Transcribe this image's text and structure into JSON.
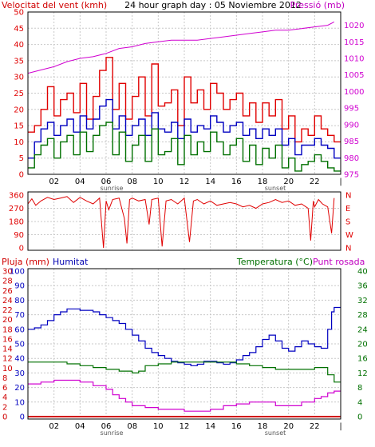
{
  "colors": {
    "frame": "#000000",
    "grid": "#c8c8c8",
    "wind_gust": "#e00000",
    "wind_avg": "#0000c0",
    "wind_low": "#007000",
    "pressure": "#d000d0",
    "rain": "#d00000",
    "humidity": "#0000c0",
    "temperature": "#007000",
    "dewpoint": "#d000d0",
    "sun_label": "#555555"
  },
  "chart_data": [
    {
      "type": "line",
      "title": "24 hour graph day : 05 Noviembre 2012",
      "ylabel_left": "Velocitat del vent (kmh)",
      "ylabel_right": "Pressió (mb)",
      "x_ticks": [
        "02",
        "04",
        "06",
        "08",
        "10",
        "12",
        "14",
        "16",
        "18",
        "20",
        "22",
        "|"
      ],
      "x_annotations": [
        "sunrise",
        "sunset"
      ],
      "xlim": [
        0,
        24
      ],
      "ylim_left": [
        0,
        50
      ],
      "y_ticks_left": [
        "0",
        "5",
        "10",
        "15",
        "20",
        "25",
        "30",
        "35",
        "40",
        "45",
        "50"
      ],
      "ylim_right": [
        975,
        1024
      ],
      "y_ticks_right": [
        "975",
        "980",
        "985",
        "990",
        "995",
        "1000",
        "1005",
        "1010",
        "1015",
        "1020"
      ],
      "grid": true,
      "series": [
        {
          "role": "gust",
          "axis": "left",
          "x": [
            0,
            0.5,
            1,
            1.5,
            2,
            2.5,
            3,
            3.5,
            4,
            4.5,
            5,
            5.5,
            6,
            6.5,
            7,
            7.5,
            8,
            8.5,
            9,
            9.5,
            10,
            10.5,
            11,
            11.5,
            12,
            12.5,
            13,
            13.5,
            14,
            14.5,
            15,
            15.5,
            16,
            16.5,
            17,
            17.5,
            18,
            18.5,
            19,
            19.5,
            20,
            20.5,
            21,
            21.5,
            22,
            22.5,
            23,
            23.5
          ],
          "values": [
            13,
            15,
            20,
            27,
            18,
            23,
            25,
            19,
            28,
            17,
            24,
            32,
            36,
            20,
            28,
            17,
            24,
            30,
            18,
            34,
            21,
            22,
            26,
            15,
            30,
            22,
            26,
            20,
            28,
            25,
            20,
            23,
            25,
            18,
            22,
            16,
            22,
            18,
            23,
            14,
            18,
            10,
            14,
            12,
            18,
            14,
            12,
            10
          ]
        },
        {
          "role": "average",
          "axis": "left",
          "x": [
            0,
            0.5,
            1,
            1.5,
            2,
            2.5,
            3,
            3.5,
            4,
            4.5,
            5,
            5.5,
            6,
            6.5,
            7,
            7.5,
            8,
            8.5,
            9,
            9.5,
            10,
            10.5,
            11,
            11.5,
            12,
            12.5,
            13,
            13.5,
            14,
            14.5,
            15,
            15.5,
            16,
            16.5,
            17,
            17.5,
            18,
            18.5,
            19,
            19.5,
            20,
            20.5,
            21,
            21.5,
            22,
            22.5,
            23,
            23.5
          ],
          "values": [
            5,
            10,
            14,
            16,
            12,
            15,
            17,
            13,
            18,
            14,
            17,
            21,
            23,
            14,
            18,
            12,
            15,
            17,
            12,
            19,
            14,
            13,
            16,
            11,
            17,
            13,
            15,
            14,
            18,
            16,
            13,
            15,
            16,
            12,
            14,
            11,
            14,
            12,
            14,
            9,
            11,
            6,
            9,
            9,
            11,
            9,
            8,
            5
          ]
        },
        {
          "role": "low",
          "axis": "left",
          "x": [
            0,
            0.5,
            1,
            1.5,
            2,
            2.5,
            3,
            3.5,
            4,
            4.5,
            5,
            5.5,
            6,
            6.5,
            7,
            7.5,
            8,
            8.5,
            9,
            9.5,
            10,
            10.5,
            11,
            11.5,
            12,
            12.5,
            13,
            13.5,
            14,
            14.5,
            15,
            15.5,
            16,
            16.5,
            17,
            17.5,
            18,
            18.5,
            19,
            19.5,
            20,
            20.5,
            21,
            21.5,
            22,
            22.5,
            23,
            23.5
          ],
          "values": [
            2,
            6,
            9,
            11,
            5,
            10,
            12,
            6,
            13,
            7,
            12,
            15,
            16,
            6,
            13,
            4,
            9,
            12,
            4,
            14,
            6,
            7,
            11,
            3,
            12,
            6,
            10,
            7,
            13,
            10,
            6,
            9,
            11,
            4,
            9,
            3,
            8,
            5,
            9,
            2,
            5,
            1,
            3,
            4,
            6,
            4,
            2,
            1
          ]
        },
        {
          "role": "pressure",
          "axis": "right",
          "x": [
            0,
            1,
            2,
            3,
            4,
            5,
            6,
            7,
            8,
            9,
            10,
            11,
            12,
            13,
            14,
            15,
            16,
            17,
            18,
            19,
            20,
            21,
            22,
            23,
            23.5
          ],
          "values": [
            1005.5,
            1006.5,
            1007.5,
            1009,
            1010,
            1010.5,
            1011.5,
            1013,
            1013.5,
            1014.5,
            1015,
            1015.5,
            1015.5,
            1015.5,
            1016,
            1016.5,
            1017,
            1017.5,
            1018,
            1018.5,
            1018.5,
            1019,
            1019.5,
            1020,
            1021
          ]
        }
      ]
    },
    {
      "type": "line",
      "ylim": [
        0,
        360
      ],
      "y_ticks": [
        "0",
        "90",
        "180",
        "270",
        "360"
      ],
      "y_ticks_right": [
        "N",
        "W",
        "S",
        "E",
        "N"
      ],
      "xlim": [
        0,
        24
      ],
      "grid": true,
      "series": [
        {
          "role": "wind-direction",
          "x": [
            0,
            0.3,
            0.6,
            1,
            1.5,
            2,
            2.5,
            3,
            3.5,
            4,
            4.5,
            5,
            5.5,
            5.8,
            6,
            6.2,
            6.5,
            7,
            7.4,
            7.6,
            7.8,
            8,
            8.5,
            9,
            9.3,
            9.5,
            10,
            10.3,
            10.6,
            11,
            11.5,
            12,
            12.4,
            12.7,
            13,
            13.5,
            14,
            14.5,
            15,
            15.5,
            16,
            16.5,
            17,
            17.5,
            18,
            18.5,
            19,
            19.5,
            20,
            20.5,
            21,
            21.5,
            21.7,
            21.9,
            22,
            22.3,
            22.6,
            23,
            23.3,
            23.5
          ],
          "values": [
            300,
            335,
            290,
            320,
            345,
            330,
            340,
            350,
            310,
            345,
            320,
            300,
            340,
            0,
            320,
            260,
            330,
            340,
            200,
            30,
            330,
            340,
            320,
            330,
            160,
            330,
            340,
            10,
            320,
            330,
            300,
            340,
            40,
            320,
            330,
            300,
            320,
            290,
            300,
            310,
            300,
            280,
            290,
            270,
            300,
            310,
            330,
            310,
            320,
            290,
            300,
            270,
            50,
            320,
            280,
            330,
            300,
            280,
            100,
            340
          ]
        }
      ]
    },
    {
      "type": "line",
      "ylabel_left": "Pluja (mm)",
      "ylabel_left_2": "Humitat",
      "ylabel_right": "Temperatura (°C)",
      "ylabel_right_2": "Punt rosada",
      "x_ticks": [
        "02",
        "04",
        "06",
        "08",
        "10",
        "12",
        "14",
        "16",
        "18",
        "20",
        "22",
        "|"
      ],
      "x_annotations": [
        "sunrise",
        "sunset"
      ],
      "xlim": [
        0,
        24
      ],
      "ylim_left_rain": [
        0,
        30
      ],
      "y_ticks_left_rain": [
        "0",
        "2",
        "4",
        "6",
        "8",
        "10",
        "12",
        "14",
        "16",
        "18",
        "20",
        "22",
        "24",
        "26",
        "28",
        "30"
      ],
      "ylim_left_humidity": [
        0,
        100
      ],
      "y_ticks_left_humidity": [
        "0",
        "10",
        "20",
        "30",
        "40",
        "50",
        "60",
        "70",
        "80",
        "90",
        "100"
      ],
      "ylim_right": [
        0,
        40
      ],
      "y_ticks_right": [
        "0",
        "4",
        "8",
        "12",
        "16",
        "20",
        "24",
        "28",
        "32",
        "36",
        "40"
      ],
      "grid": true,
      "series": [
        {
          "role": "humidity",
          "axis": "left-humidity",
          "x": [
            0,
            0.5,
            1,
            1.5,
            2,
            2.5,
            3,
            3.5,
            4,
            4.5,
            5,
            5.5,
            6,
            6.5,
            7,
            7.5,
            8,
            8.5,
            9,
            9.5,
            10,
            10.5,
            11,
            11.5,
            12,
            12.5,
            13,
            13.5,
            14,
            14.5,
            15,
            15.5,
            16,
            16.5,
            17,
            17.5,
            18,
            18.5,
            19,
            19.5,
            20,
            20.5,
            21,
            21.5,
            22,
            22.5,
            23,
            23.3,
            23.5
          ],
          "values": [
            60,
            61,
            63,
            66,
            70,
            72,
            74,
            74,
            73,
            73,
            72,
            70,
            68,
            66,
            64,
            60,
            56,
            52,
            47,
            44,
            42,
            40,
            38,
            37,
            36,
            35,
            36,
            38,
            38,
            37,
            36,
            37,
            39,
            42,
            44,
            48,
            53,
            56,
            52,
            47,
            45,
            48,
            52,
            50,
            48,
            47,
            60,
            72,
            75
          ]
        },
        {
          "role": "temperature",
          "axis": "right",
          "x": [
            0,
            1,
            2,
            3,
            4,
            5,
            6,
            7,
            8,
            8.5,
            9,
            10,
            11,
            12,
            13,
            14,
            15,
            16,
            17,
            18,
            19,
            20,
            21,
            22,
            22.5,
            23,
            23.5
          ],
          "values": [
            15,
            15,
            15,
            14.5,
            14,
            13.5,
            13,
            12.5,
            12,
            12.5,
            14,
            14.5,
            15,
            15,
            15,
            15,
            15,
            14.5,
            14,
            13.5,
            13,
            13,
            13,
            13.5,
            13.5,
            11.5,
            9.5
          ]
        },
        {
          "role": "dewpoint",
          "axis": "right",
          "x": [
            0,
            1,
            2,
            3,
            4,
            5,
            6,
            6.5,
            7,
            7.5,
            8,
            9,
            10,
            11,
            12,
            13,
            14,
            15,
            16,
            17,
            18,
            19,
            20,
            21,
            22,
            22.5,
            23,
            23.5
          ],
          "values": [
            9,
            9.5,
            10,
            10,
            9.5,
            8.5,
            7.5,
            6,
            5,
            4,
            3,
            2.5,
            2,
            2,
            1.5,
            1.5,
            2,
            3,
            3.5,
            4,
            4,
            3,
            3,
            4,
            5,
            5.5,
            6.5,
            7
          ]
        },
        {
          "role": "rain",
          "axis": "left-rain",
          "x": [
            0,
            24
          ],
          "values": [
            0,
            0
          ]
        }
      ]
    }
  ]
}
